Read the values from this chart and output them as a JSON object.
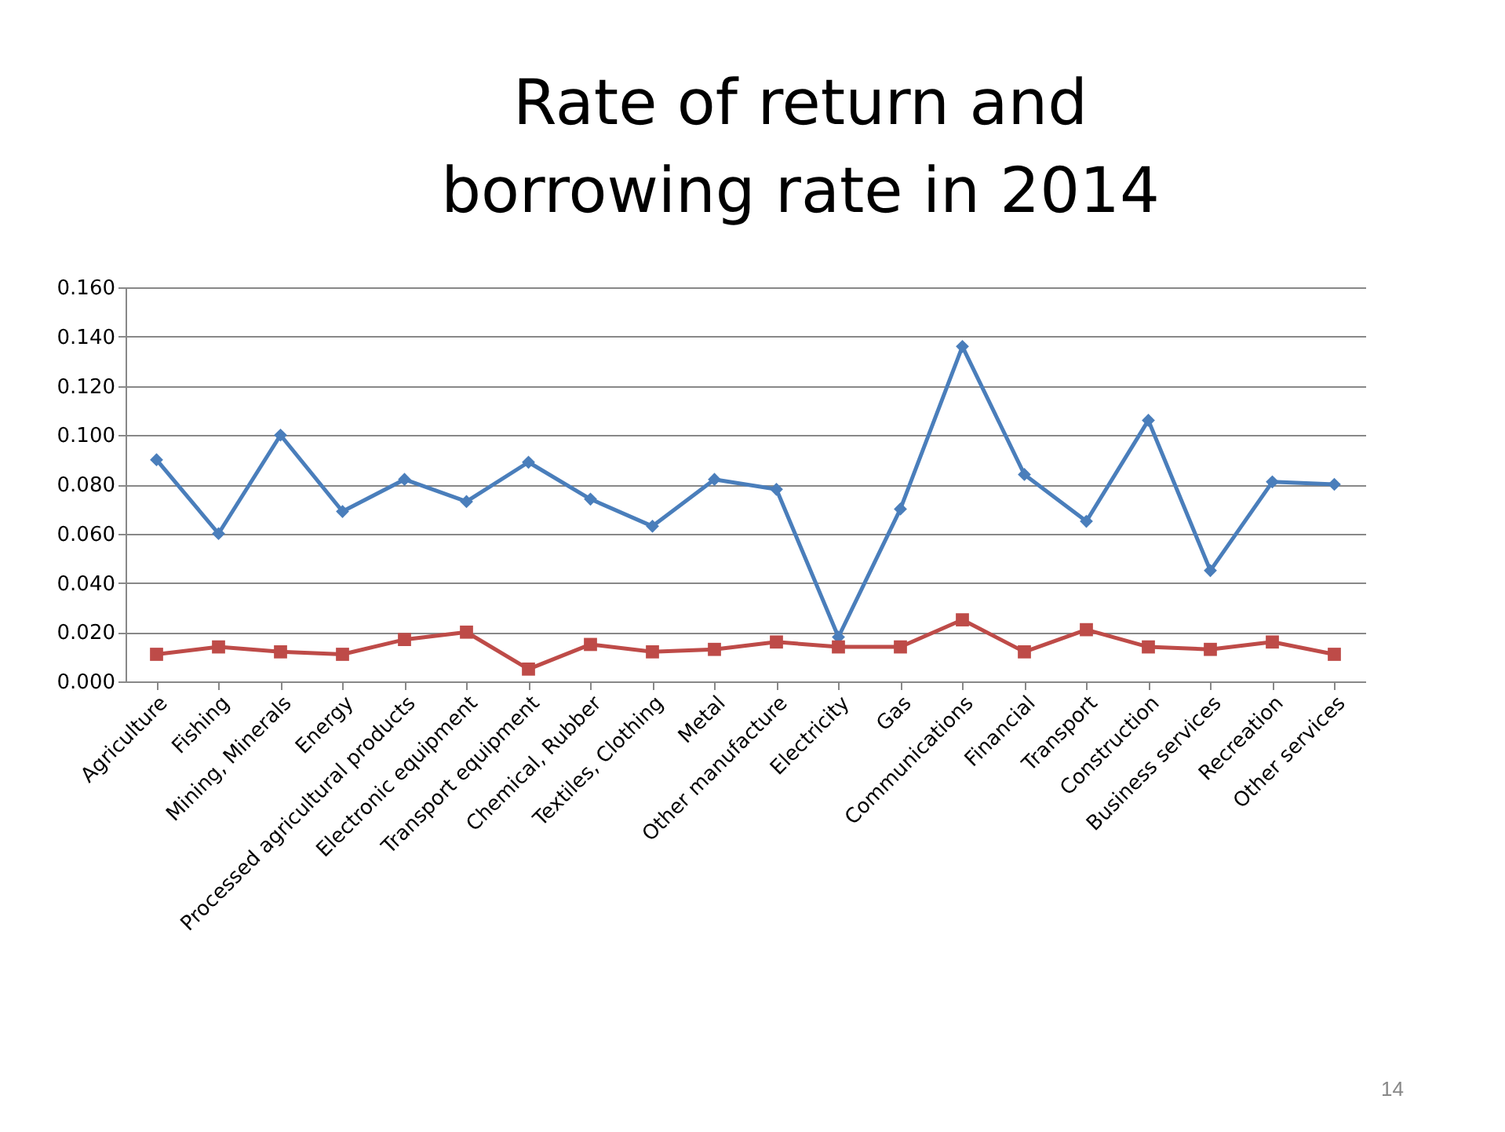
{
  "chart_data": {
    "type": "line",
    "title": "Rate of return and borrowing rate in 2014",
    "categories": [
      "Agriculture",
      "Fishing",
      "Mining, Minerals",
      "Energy",
      "Processed agricultural products",
      "Electronic equipment",
      "Transport equipment",
      "Chemical, Rubber",
      "Textiles, Clothing",
      "Metal",
      "Other manufacture",
      "Electricity",
      "Gas",
      "Communications",
      "Financial",
      "Transport",
      "Construction",
      "Business services",
      "Recreation",
      "Other services"
    ],
    "series": [
      {
        "color": "#4a7ebb",
        "marker": "diamond",
        "values": [
          0.09,
          0.06,
          0.1,
          0.069,
          0.082,
          0.073,
          0.089,
          0.074,
          0.063,
          0.082,
          0.078,
          0.018,
          0.07,
          0.136,
          0.084,
          0.065,
          0.106,
          0.045,
          0.081,
          0.08
        ]
      },
      {
        "color": "#be4b48",
        "marker": "square",
        "values": [
          0.011,
          0.014,
          0.012,
          0.011,
          0.017,
          0.02,
          0.005,
          0.015,
          0.012,
          0.013,
          0.016,
          0.014,
          0.014,
          0.025,
          0.012,
          0.021,
          0.014,
          0.013,
          0.016,
          0.011
        ]
      }
    ],
    "ylim": [
      0,
      0.16
    ],
    "yticks": [
      {
        "value": 0,
        "label": "0.000"
      },
      {
        "value": 0.02,
        "label": "0.020"
      },
      {
        "value": 0.04,
        "label": "0.040"
      },
      {
        "value": 0.06,
        "label": "0.060"
      },
      {
        "value": 0.08,
        "label": "0.080"
      },
      {
        "value": 0.1,
        "label": "0.100"
      },
      {
        "value": 0.12,
        "label": "0.120"
      },
      {
        "value": 0.14,
        "label": "0.140"
      },
      {
        "value": 0.16,
        "label": "0.160"
      }
    ],
    "grid": "y",
    "line_style": "solid",
    "annotations": [
      "14"
    ]
  }
}
